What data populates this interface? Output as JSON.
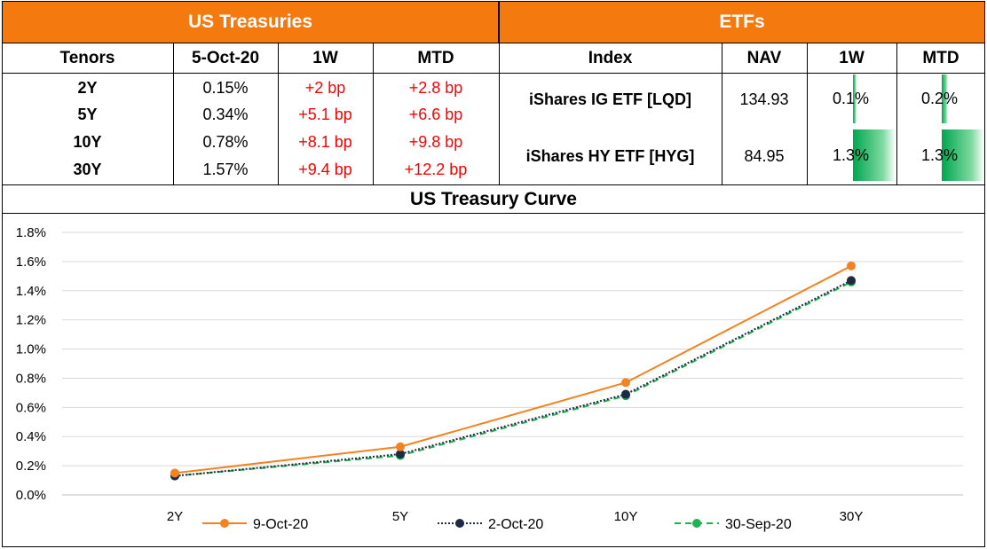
{
  "treasuries": {
    "title": "US Treasuries",
    "headers": [
      "Tenors",
      "5-Oct-20",
      "1W",
      "MTD"
    ],
    "rows": [
      {
        "tenor": "2Y",
        "yield": "0.15%",
        "w1": "+2 bp",
        "mtd": "+2.8 bp"
      },
      {
        "tenor": "5Y",
        "yield": "0.34%",
        "w1": "+5.1 bp",
        "mtd": "+6.6 bp"
      },
      {
        "tenor": "10Y",
        "yield": "0.78%",
        "w1": "+8.1 bp",
        "mtd": "+9.8 bp"
      },
      {
        "tenor": "30Y",
        "yield": "1.57%",
        "w1": "+9.4 bp",
        "mtd": "+12.2 bp"
      }
    ]
  },
  "etfs": {
    "title": "ETFs",
    "headers": [
      "Index",
      "NAV",
      "1W",
      "MTD"
    ],
    "rows": [
      {
        "index": "iShares IG ETF [LQD]",
        "nav": "134.93",
        "w1": "0.1%",
        "w1_value": 0.1,
        "mtd": "0.2%",
        "mtd_value": 0.2
      },
      {
        "index": "iShares HY ETF [HYG]",
        "nav": "84.95",
        "w1": "1.3%",
        "w1_value": 1.3,
        "mtd": "1.3%",
        "mtd_value": 1.3
      }
    ],
    "bar_color": "#00a650"
  },
  "chart_title": "US Treasury Curve",
  "chart_data": {
    "type": "line",
    "categories": [
      "2Y",
      "5Y",
      "10Y",
      "30Y"
    ],
    "series": [
      {
        "name": "9-Oct-20",
        "values": [
          0.15,
          0.33,
          0.77,
          1.57
        ],
        "color": "#f58220",
        "style": "solid"
      },
      {
        "name": "2-Oct-20",
        "values": [
          0.13,
          0.28,
          0.69,
          1.47
        ],
        "color": "#1f2a44",
        "style": "dotted"
      },
      {
        "name": "30-Sep-20",
        "values": [
          0.13,
          0.27,
          0.68,
          1.46
        ],
        "color": "#22b150",
        "style": "dashed"
      }
    ],
    "ylim": [
      0,
      1.8
    ],
    "yticks": [
      "0.0%",
      "0.2%",
      "0.4%",
      "0.6%",
      "0.8%",
      "1.0%",
      "1.2%",
      "1.4%",
      "1.6%",
      "1.8%"
    ],
    "grid": true,
    "legend": "bottom"
  }
}
